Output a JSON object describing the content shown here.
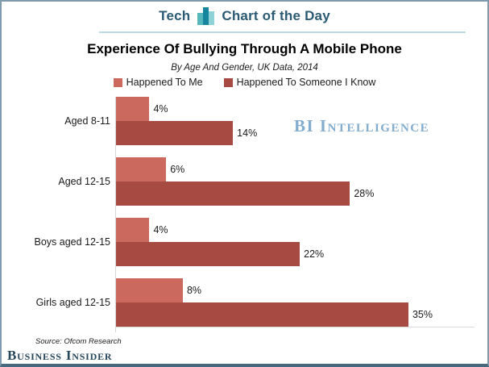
{
  "header": {
    "section": "Tech",
    "title": "Chart of the Day",
    "text_color": "#2b5a74",
    "underline_color": "#bcd9e2",
    "icon": "bar-chart-icon",
    "icon_bar_colors": [
      "#56b7bd",
      "#17869d",
      "#8ed2d8"
    ],
    "icon_bar_heights": [
      15,
      22,
      17
    ]
  },
  "chart_data": {
    "type": "bar",
    "orientation": "horizontal",
    "title": "Experience Of Bullying Through A Mobile Phone",
    "subtitle": "By Age And Gender, UK Data, 2014",
    "categories": [
      "Aged 8-11",
      "Aged 12-15",
      "Boys aged 12-15",
      "Girls aged 12-15"
    ],
    "series": [
      {
        "name": "Happened To Me",
        "color": "#cb695e",
        "values": [
          4,
          6,
          4,
          8
        ]
      },
      {
        "name": "Happened To Someone I Know",
        "color": "#a74b42",
        "values": [
          14,
          28,
          22,
          35
        ]
      }
    ],
    "value_suffix": "%",
    "data_labels": true,
    "xlim": [
      0,
      43.2
    ],
    "grid": false,
    "legend_position": "top",
    "axis_color": "#d6d6d6"
  },
  "watermark": {
    "text": "BI Intelligence",
    "color": "#83adcf"
  },
  "footer": {
    "source": "Source: Ofcom Research",
    "logo": "Business Insider",
    "logo_color": "#27475c"
  }
}
